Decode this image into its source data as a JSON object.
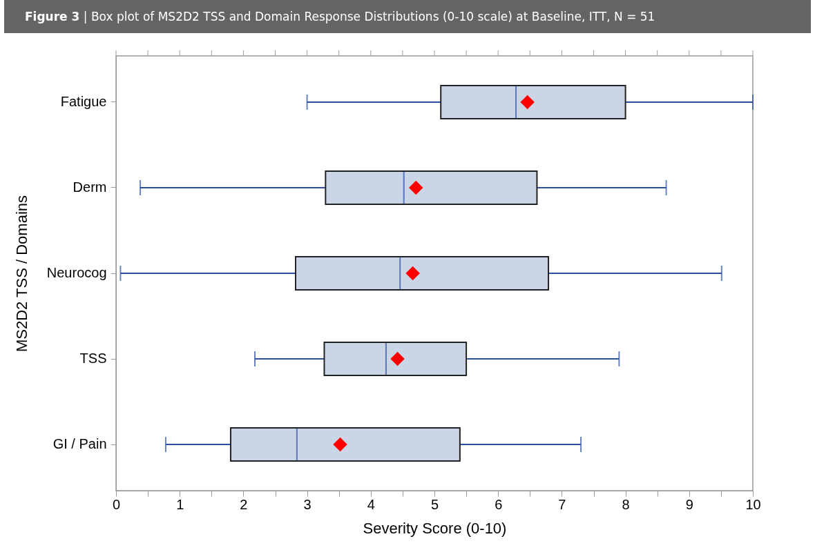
{
  "chart_data": {
    "type": "box",
    "title": "Figure 3 | Box plot of MS2D2 TSS and Domain Response Distributions (0-10 scale) at Baseline, ITT, N = 51",
    "xlabel": "Severity Score (0-10)",
    "ylabel": "MS2D2 TSS / Domains",
    "orientation": "horizontal",
    "marker": "diamond",
    "categories": [
      "Fatigue",
      "Derm",
      "Neurocog",
      "TSS",
      "GI / Pain"
    ],
    "series": [
      {
        "color": "#cad5e6",
        "boxes": [
          {
            "low": 3.0,
            "q1": 5.1,
            "median": 6.28,
            "q3": 8.0,
            "high": 10.0,
            "mean": 6.46
          },
          {
            "low": 0.38,
            "q1": 3.29,
            "median": 4.52,
            "q3": 6.61,
            "high": 8.64,
            "mean": 4.71
          },
          {
            "low": 0.07,
            "q1": 2.82,
            "median": 4.46,
            "q3": 6.79,
            "high": 9.51,
            "mean": 4.66
          },
          {
            "low": 2.18,
            "q1": 3.27,
            "median": 4.24,
            "q3": 5.5,
            "high": 7.9,
            "mean": 4.42
          },
          {
            "low": 0.78,
            "q1": 1.8,
            "median": 2.84,
            "q3": 5.4,
            "high": 7.3,
            "mean": 3.52
          }
        ]
      }
    ],
    "xlim": [
      0,
      10
    ],
    "xticks": [
      0,
      {
        "value": 0.5,
        "label": null
      },
      1,
      {
        "value": 1.5,
        "label": null
      },
      2,
      {
        "value": 2.5,
        "label": null
      },
      3,
      {
        "value": 3.5,
        "label": null
      },
      4,
      {
        "value": 4.5,
        "label": null
      },
      5,
      {
        "value": 5.5,
        "label": null
      },
      6,
      {
        "value": 6.5,
        "label": null
      },
      7,
      {
        "value": 7.5,
        "label": null
      },
      8,
      {
        "value": 8.5,
        "label": null
      },
      9,
      {
        "value": 9.5,
        "label": null
      },
      10
    ]
  }
}
